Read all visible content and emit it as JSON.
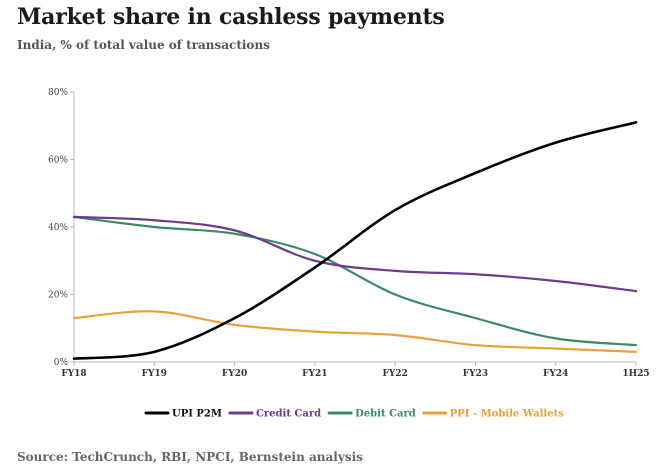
{
  "chart_data": {
    "type": "line",
    "title": "Market share in cashless payments",
    "subtitle": "India, % of total value of transactions",
    "source": "Source: TechCrunch, RBI, NPCI, Bernstein analysis",
    "categories": [
      "FY18",
      "FY19",
      "FY20",
      "FY21",
      "FY22",
      "FY23",
      "FY24",
      "1H25"
    ],
    "ylim": [
      0,
      80
    ],
    "yticks": [
      "0%",
      "20%",
      "40%",
      "60%",
      "80%"
    ],
    "grid": false,
    "legend_position": "bottom",
    "series": [
      {
        "name": "UPI P2M",
        "color": "#000000",
        "values": [
          1,
          3,
          13,
          28,
          45,
          56,
          65,
          71
        ]
      },
      {
        "name": "Credit Card",
        "color": "#6a3d8f",
        "values": [
          43,
          42,
          39,
          30,
          27,
          26,
          24,
          21
        ]
      },
      {
        "name": "Debit Card",
        "color": "#3a8a63",
        "values": [
          43,
          40,
          38,
          32,
          20,
          13,
          7,
          5
        ]
      },
      {
        "name": "PPI - Mobile Wallets",
        "color": "#e8a23a",
        "values": [
          13,
          15,
          11,
          9,
          8,
          5,
          4,
          3
        ]
      }
    ]
  }
}
